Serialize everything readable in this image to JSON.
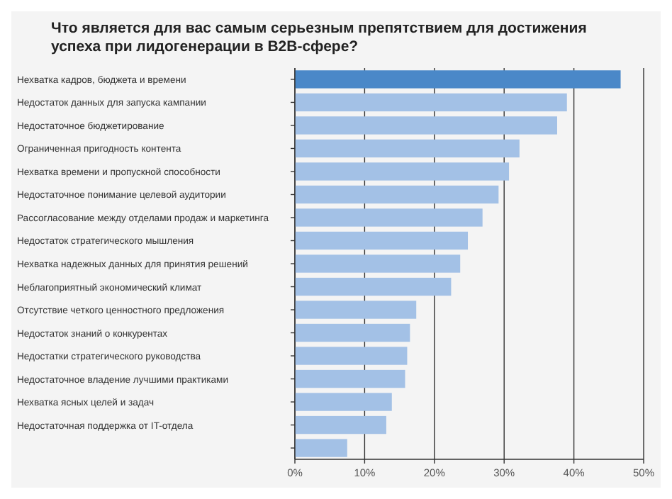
{
  "chart_data": {
    "type": "bar",
    "orientation": "horizontal",
    "title": "Что является для вас самым серьезным препятствием для достижения успеха при лидогенерации в B2B-сфере?",
    "categories": [
      "Нехватка кадров, бюджета и времени",
      "Недостаток данных для запуска кампании",
      "Недостаточное бюджетирование",
      "Ограниченная пригодность контента",
      "Нехватка времени и пропускной способности",
      "Недостаточное понимание целевой аудитории",
      "Рассогласование между отделами продаж и маркетинга",
      "Недостаток стратегического мышления",
      "Нехватка надежных данных для принятия решений",
      "Неблагоприятный экономический климат",
      "Отсутствие четкого ценностного предложения",
      "Недостаток знаний о конкурентах",
      "Недостатки стратегического руководства",
      "Недостаточное владение лучшими практиками",
      "Нехватка ясных целей и задач",
      "Недостаточная поддержка от IT-отдела",
      null
    ],
    "values": [
      46.7,
      39,
      37.6,
      32.2,
      30.7,
      29.2,
      26.9,
      24.8,
      23.7,
      22.4,
      17.4,
      16.5,
      16.1,
      15.8,
      13.9,
      13.1,
      7.5
    ],
    "colors": [
      "#4a88c8",
      "#a3c1e6",
      "#a3c1e6",
      "#a3c1e6",
      "#a3c1e6",
      "#a3c1e6",
      "#a3c1e6",
      "#a3c1e6",
      "#a3c1e6",
      "#a3c1e6",
      "#a3c1e6",
      "#a3c1e6",
      "#a3c1e6",
      "#a3c1e6",
      "#a3c1e6",
      "#a3c1e6",
      "#a3c1e6"
    ],
    "xlim": [
      0,
      50
    ],
    "xticks": [
      {
        "value": 0,
        "label": "0%"
      },
      {
        "value": 10,
        "label": "10%"
      },
      {
        "value": 20,
        "label": "20%"
      },
      {
        "value": 30,
        "label": "30%"
      },
      {
        "value": 40,
        "label": "40%"
      },
      {
        "value": 50,
        "label": "50%"
      }
    ],
    "grid": "x"
  }
}
